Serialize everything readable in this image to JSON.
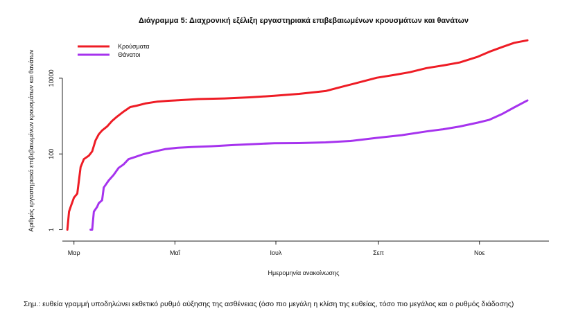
{
  "chart_data": {
    "type": "line",
    "title": "Διάγραμμα 5: Διαχρονική εξέλιξη εργαστηριακά επιβεβαιωμένων κρουσμάτων και θανάτων",
    "xlabel": "Ημερομηνία ανακοίνωσης",
    "ylabel": "Αριθμός εργαστηριακά επιβεβαιωμένων κρουσμάτων και θανάτων",
    "y_scale": "log",
    "ylim": [
      0.5,
      130000
    ],
    "yticks": [
      {
        "value": 1,
        "label": "1"
      },
      {
        "value": 100,
        "label": "100"
      },
      {
        "value": 10000,
        "label": "10000"
      }
    ],
    "xlim": [
      "2020-02-23",
      "2020-12-13"
    ],
    "xticks": [
      {
        "value": "2020-03-01",
        "label": "Μαρ"
      },
      {
        "value": "2020-05-01",
        "label": "Μαΐ"
      },
      {
        "value": "2020-07-01",
        "label": "Ιουλ"
      },
      {
        "value": "2020-09-01",
        "label": "Σεπ"
      },
      {
        "value": "2020-11-01",
        "label": "Νοε"
      }
    ],
    "grid": false,
    "legend_position": "top-left",
    "series": [
      {
        "name": "Κρούσματα",
        "color": "#ee1c25",
        "points": [
          [
            "2020-02-26",
            1
          ],
          [
            "2020-02-27",
            3
          ],
          [
            "2020-02-28",
            4
          ],
          [
            "2020-03-01",
            7
          ],
          [
            "2020-03-03",
            9
          ],
          [
            "2020-03-05",
            45
          ],
          [
            "2020-03-07",
            73
          ],
          [
            "2020-03-10",
            90
          ],
          [
            "2020-03-12",
            117
          ],
          [
            "2020-03-14",
            228
          ],
          [
            "2020-03-16",
            331
          ],
          [
            "2020-03-18",
            418
          ],
          [
            "2020-03-21",
            530
          ],
          [
            "2020-03-24",
            743
          ],
          [
            "2020-03-27",
            966
          ],
          [
            "2020-03-31",
            1314
          ],
          [
            "2020-04-04",
            1735
          ],
          [
            "2020-04-08",
            1884
          ],
          [
            "2020-04-13",
            2145
          ],
          [
            "2020-04-20",
            2401
          ],
          [
            "2020-04-27",
            2534
          ],
          [
            "2020-05-03",
            2620
          ],
          [
            "2020-05-15",
            2810
          ],
          [
            "2020-05-31",
            2917
          ],
          [
            "2020-06-15",
            3121
          ],
          [
            "2020-06-30",
            3432
          ],
          [
            "2020-07-15",
            3854
          ],
          [
            "2020-07-31",
            4587
          ],
          [
            "2020-08-10",
            5942
          ],
          [
            "2020-08-20",
            7684
          ],
          [
            "2020-08-31",
            10317
          ],
          [
            "2020-09-10",
            12080
          ],
          [
            "2020-09-20",
            14400
          ],
          [
            "2020-09-30",
            18500
          ],
          [
            "2020-10-10",
            21700
          ],
          [
            "2020-10-20",
            26000
          ],
          [
            "2020-10-31",
            36900
          ],
          [
            "2020-11-07",
            50000
          ],
          [
            "2020-11-15",
            67000
          ],
          [
            "2020-11-22",
            86000
          ],
          [
            "2020-11-30",
            100000
          ]
        ]
      },
      {
        "name": "Θάνατοι",
        "color": "#a633ee",
        "points": [
          [
            "2020-03-11",
            1
          ],
          [
            "2020-03-12",
            1
          ],
          [
            "2020-03-13",
            3
          ],
          [
            "2020-03-15",
            4
          ],
          [
            "2020-03-16",
            5
          ],
          [
            "2020-03-18",
            6
          ],
          [
            "2020-03-19",
            13
          ],
          [
            "2020-03-22",
            20
          ],
          [
            "2020-03-25",
            28
          ],
          [
            "2020-03-28",
            43
          ],
          [
            "2020-03-31",
            53
          ],
          [
            "2020-04-03",
            73
          ],
          [
            "2020-04-07",
            83
          ],
          [
            "2020-04-12",
            99
          ],
          [
            "2020-04-18",
            114
          ],
          [
            "2020-04-25",
            134
          ],
          [
            "2020-05-03",
            146
          ],
          [
            "2020-05-12",
            153
          ],
          [
            "2020-05-23",
            160
          ],
          [
            "2020-06-06",
            172
          ],
          [
            "2020-06-20",
            184
          ],
          [
            "2020-06-30",
            192
          ],
          [
            "2020-07-15",
            194
          ],
          [
            "2020-07-31",
            202
          ],
          [
            "2020-08-15",
            220
          ],
          [
            "2020-08-31",
            266
          ],
          [
            "2020-09-15",
            313
          ],
          [
            "2020-09-30",
            393
          ],
          [
            "2020-10-10",
            449
          ],
          [
            "2020-10-20",
            530
          ],
          [
            "2020-10-31",
            673
          ],
          [
            "2020-11-07",
            800
          ],
          [
            "2020-11-15",
            1150
          ],
          [
            "2020-11-22",
            1700
          ],
          [
            "2020-11-30",
            2600
          ]
        ]
      }
    ]
  },
  "footnote": "Σημ.: ευθεία γραμμή υποδηλώνει εκθετικό ρυθμό αύξησης της ασθένειας (όσο πιο μεγάλη η κλίση της ευθείας, τόσο πιο μεγάλος και ο ρυθμός διάδοσης)"
}
